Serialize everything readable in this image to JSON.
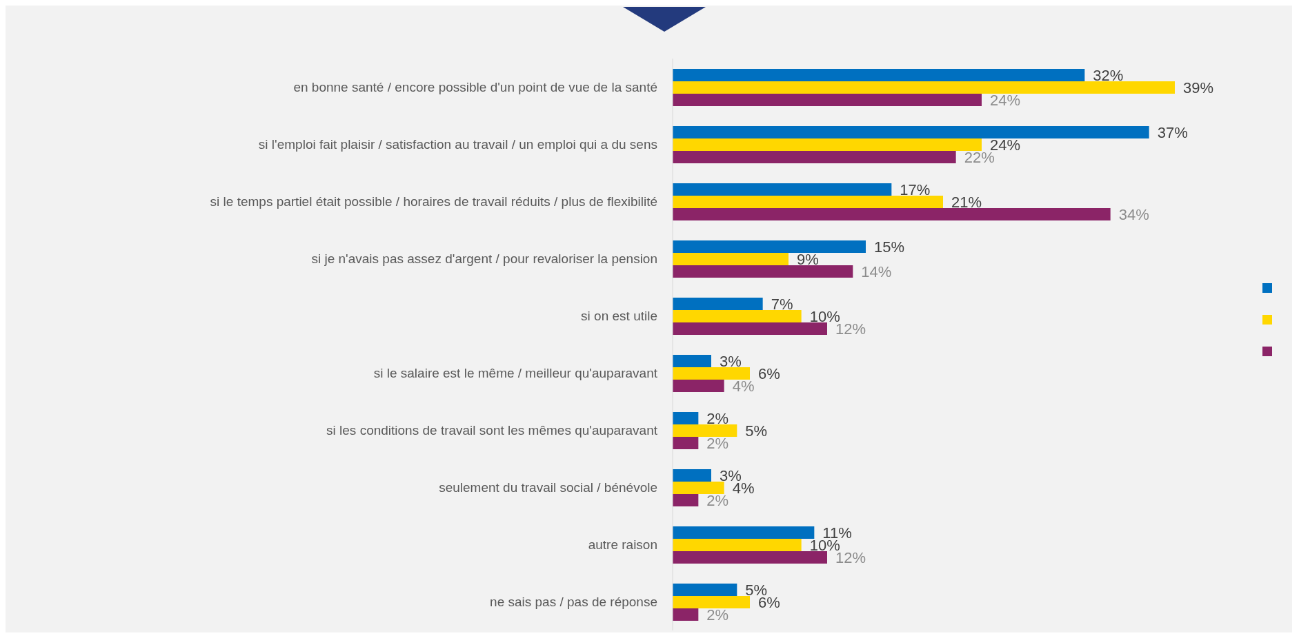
{
  "chart_data": {
    "type": "bar",
    "orientation": "horizontal",
    "categories": [
      "en bonne santé / encore possible d'un point de vue de la santé",
      "si l'emploi fait plaisir / satisfaction au travail / un emploi qui a du sens",
      "si le temps partiel était possible / horaires de travail réduits / plus de flexibilité",
      "si je n'avais pas assez d'argent / pour revaloriser la pension",
      "si on est utile",
      "si le salaire est le même / meilleur qu'auparavant",
      "si les conditions de travail sont les mêmes qu'auparavant",
      "seulement du travail social / bénévole",
      "autre raison",
      "ne sais pas / pas de réponse"
    ],
    "series": [
      {
        "color": "#0070c0",
        "values": [
          32,
          37,
          17,
          15,
          7,
          3,
          2,
          3,
          11,
          5
        ],
        "value_labels": [
          "32%",
          "37%",
          "17%",
          "15%",
          "7%",
          "3%",
          "2%",
          "3%",
          "11%",
          "5%"
        ]
      },
      {
        "color": "#ffd700",
        "values": [
          39,
          24,
          21,
          9,
          10,
          6,
          5,
          4,
          10,
          6
        ],
        "value_labels": [
          "39%",
          "24%",
          "21%",
          "9%",
          "10%",
          "6%",
          "5%",
          "4%",
          "10%",
          "6%"
        ]
      },
      {
        "color": "#8b2467",
        "values": [
          24,
          22,
          34,
          14,
          12,
          4,
          2,
          2,
          12,
          2
        ],
        "value_labels": [
          "24%",
          "22%",
          "34%",
          "14%",
          "12%",
          "4%",
          "2%",
          "2%",
          "12%",
          "2%"
        ]
      }
    ]
  }
}
